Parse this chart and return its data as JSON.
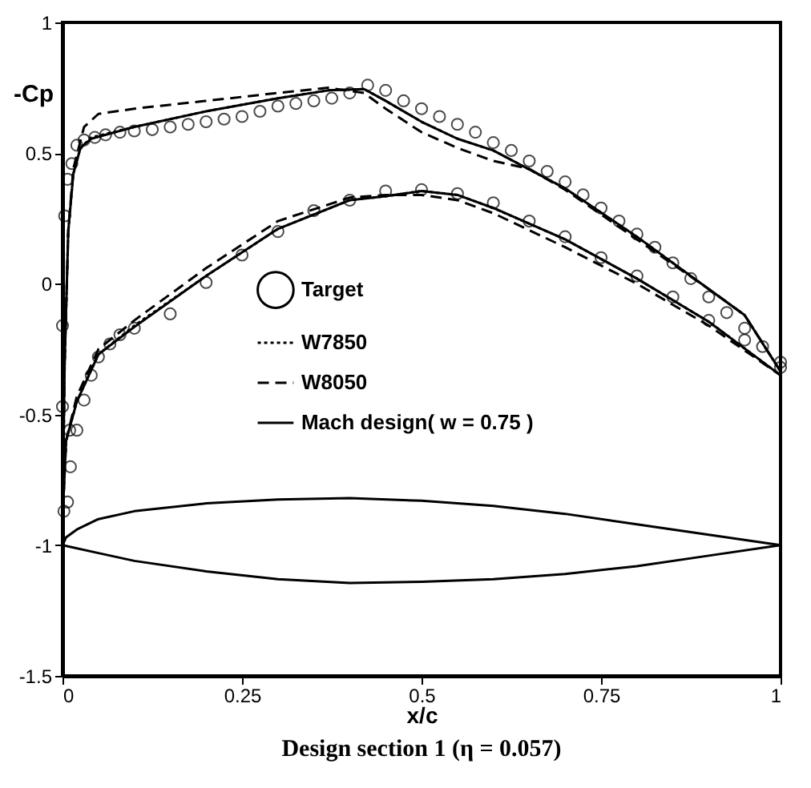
{
  "chart_data": {
    "type": "line",
    "title": "Design section 1 (η = 0.057)",
    "xlabel": "x/c",
    "ylabel": "-Cp",
    "xlim": [
      0,
      1
    ],
    "xticks": [
      0,
      0.25,
      0.5,
      0.75,
      1
    ],
    "ylim": [
      -1.5,
      1
    ],
    "yticks": [
      -1.5,
      -1,
      -0.5,
      0,
      0.5,
      1
    ],
    "grid": false,
    "legend": "center",
    "series": [
      {
        "name": "Target",
        "type": "scatter",
        "marker": "circle",
        "color": "#000000",
        "x": [
          1,
          0.975,
          0.95,
          0.925,
          0.9,
          0.875,
          0.85,
          0.825,
          0.8,
          0.775,
          0.75,
          0.725,
          0.7,
          0.675,
          0.65,
          0.625,
          0.6,
          0.575,
          0.55,
          0.525,
          0.5,
          0.475,
          0.45,
          0.425,
          0.4,
          0.375,
          0.35,
          0.325,
          0.3,
          0.275,
          0.25,
          0.225,
          0.2,
          0.175,
          0.15,
          0.125,
          0.1,
          0.08,
          0.06,
          0.045,
          0.03,
          0.02,
          0.013,
          0.007,
          0.003,
          0,
          0.002,
          0.007,
          0.011,
          0.02,
          0.01,
          0,
          0.03,
          0.04,
          0.05,
          0.066,
          0.08,
          0.1,
          0.15,
          0.2,
          0.25,
          0.3,
          0.35,
          0.4,
          0.45,
          0.5,
          0.55,
          0.6,
          0.65,
          0.7,
          0.75,
          0.8,
          0.85,
          0.9,
          0.95,
          1
        ],
        "values": [
          -0.3,
          -0.24,
          -0.17,
          -0.11,
          -0.05,
          0.02,
          0.08,
          0.14,
          0.19,
          0.24,
          0.29,
          0.34,
          0.39,
          0.43,
          0.47,
          0.51,
          0.54,
          0.58,
          0.61,
          0.64,
          0.67,
          0.7,
          0.74,
          0.76,
          0.73,
          0.71,
          0.7,
          0.69,
          0.68,
          0.66,
          0.64,
          0.63,
          0.62,
          0.61,
          0.6,
          0.59,
          0.585,
          0.58,
          0.57,
          0.56,
          0.55,
          0.53,
          0.46,
          0.4,
          0.26,
          -0.16,
          -0.87,
          -0.835,
          -0.7,
          -0.56,
          -0.56,
          -0.47,
          -0.445,
          -0.35,
          -0.28,
          -0.23,
          -0.195,
          -0.17,
          -0.115,
          0.005,
          0.11,
          0.2,
          0.28,
          0.32,
          0.355,
          0.36,
          0.345,
          0.31,
          0.24,
          0.18,
          0.1,
          0.03,
          -0.05,
          -0.14,
          -0.215,
          -0.32
        ]
      },
      {
        "name": "W7850",
        "line_style": "dotted",
        "color": "#000000",
        "x": [
          1,
          0.95,
          0.9,
          0.8,
          0.7,
          0.6,
          0.55,
          0.5,
          0.45,
          0.42,
          0.37,
          0.3,
          0.2,
          0.1,
          0.04,
          0.025,
          0.015,
          0.008,
          0.003,
          0,
          0.005,
          0.02,
          0.05,
          0.1,
          0.2,
          0.3,
          0.4,
          0.45,
          0.5,
          0.55,
          0.6,
          0.7,
          0.8,
          0.9,
          1
        ],
        "values": [
          -0.335,
          -0.12,
          -0.02,
          0.18,
          0.365,
          0.51,
          0.555,
          0.62,
          0.7,
          0.745,
          0.74,
          0.71,
          0.66,
          0.6,
          0.56,
          0.52,
          0.42,
          0.2,
          -0.3,
          -0.9,
          -0.6,
          -0.45,
          -0.27,
          -0.16,
          0.03,
          0.21,
          0.32,
          0.335,
          0.355,
          0.34,
          0.29,
          0.17,
          0.02,
          -0.145,
          -0.35
        ]
      },
      {
        "name": "W8050",
        "line_style": "dashed",
        "color": "#000000",
        "x": [
          1,
          0.95,
          0.9,
          0.8,
          0.7,
          0.65,
          0.6,
          0.55,
          0.5,
          0.45,
          0.42,
          0.37,
          0.3,
          0.2,
          0.1,
          0.05,
          0.03,
          0.015,
          0.008,
          0.003,
          0,
          0.005,
          0.02,
          0.05,
          0.1,
          0.2,
          0.3,
          0.4,
          0.45,
          0.5,
          0.55,
          0.6,
          0.7,
          0.8,
          0.9,
          1
        ],
        "values": [
          -0.335,
          -0.12,
          -0.02,
          0.17,
          0.36,
          0.44,
          0.47,
          0.52,
          0.58,
          0.67,
          0.73,
          0.75,
          0.73,
          0.7,
          0.67,
          0.65,
          0.6,
          0.44,
          0.2,
          -0.3,
          -0.9,
          -0.6,
          -0.43,
          -0.25,
          -0.14,
          0.06,
          0.24,
          0.33,
          0.34,
          0.34,
          0.32,
          0.27,
          0.14,
          0,
          -0.16,
          -0.35
        ]
      },
      {
        "name": "Mach design( w = 0.75 )",
        "line_style": "solid",
        "color": "#000000",
        "x": [
          1,
          0.95,
          0.9,
          0.8,
          0.7,
          0.6,
          0.55,
          0.5,
          0.45,
          0.42,
          0.37,
          0.3,
          0.2,
          0.1,
          0.04,
          0.025,
          0.015,
          0.008,
          0.003,
          0,
          0.005,
          0.02,
          0.05,
          0.1,
          0.2,
          0.3,
          0.4,
          0.45,
          0.5,
          0.55,
          0.6,
          0.7,
          0.8,
          0.9,
          1
        ],
        "values": [
          -0.335,
          -0.12,
          -0.02,
          0.18,
          0.365,
          0.51,
          0.555,
          0.62,
          0.7,
          0.745,
          0.74,
          0.71,
          0.66,
          0.6,
          0.555,
          0.52,
          0.42,
          0.2,
          -0.3,
          -0.9,
          -0.6,
          -0.45,
          -0.27,
          -0.165,
          0.03,
          0.21,
          0.32,
          0.335,
          0.355,
          0.34,
          0.29,
          0.17,
          0.02,
          -0.145,
          -0.35
        ]
      }
    ]
  }
}
